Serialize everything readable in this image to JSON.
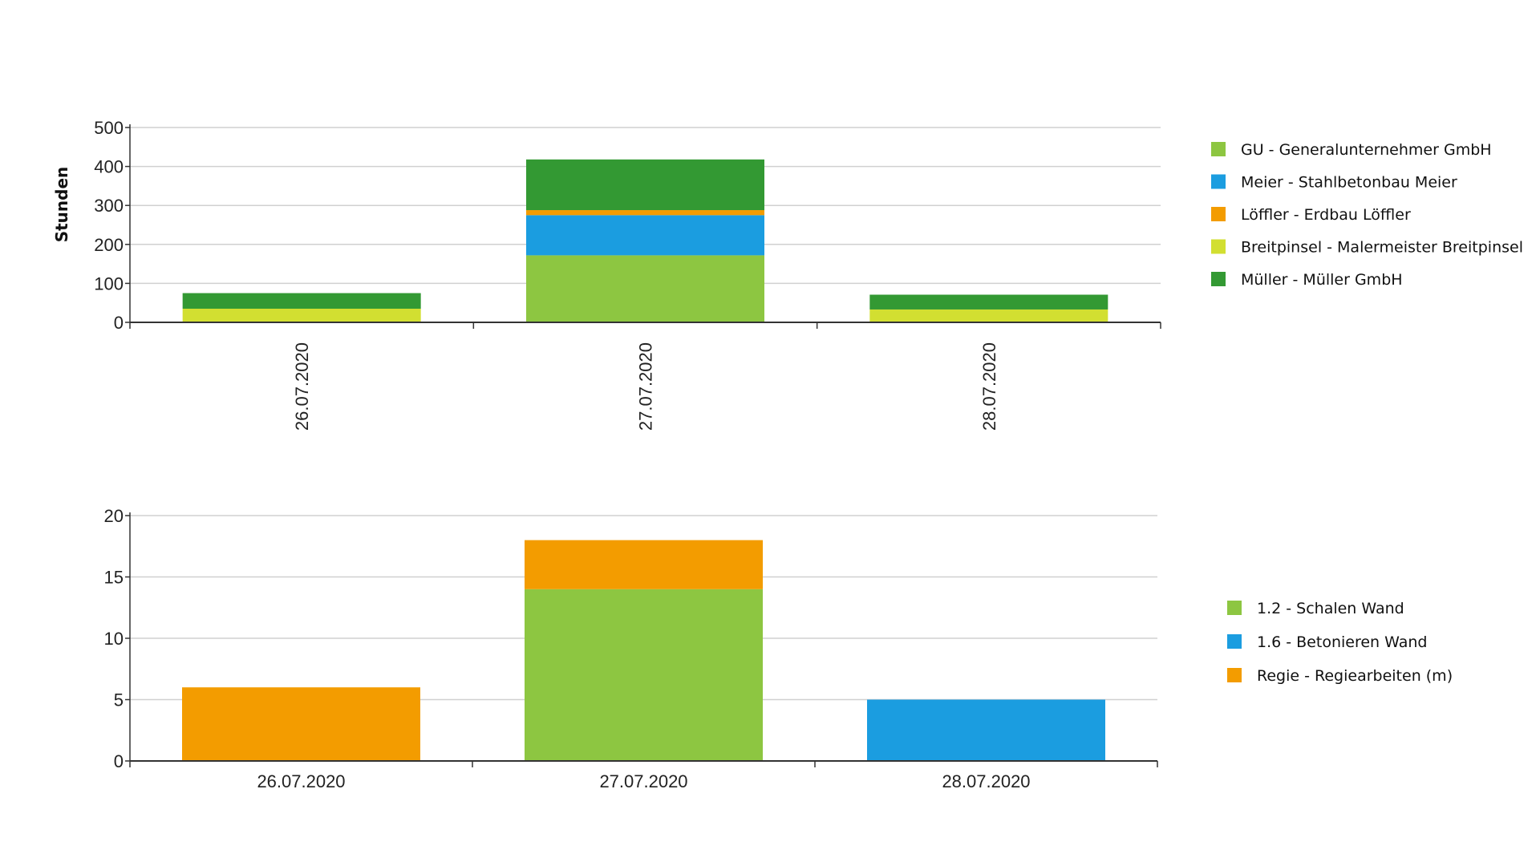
{
  "chart_data": [
    {
      "type": "bar",
      "stacked": true,
      "ylabel": "Stunden",
      "ylim": [
        0,
        500
      ],
      "yticks": [
        0,
        100,
        200,
        300,
        400,
        500
      ],
      "grid": true,
      "categories": [
        "26.07.2020",
        "27.07.2020",
        "28.07.2020"
      ],
      "category_label_orientation": "vertical",
      "legend_position": "right",
      "series": [
        {
          "name": "GU - Generalunternehmer GmbH",
          "color": "#8dc641",
          "values": [
            0,
            172,
            0
          ]
        },
        {
          "name": "Meier - Stahlbetonbau Meier",
          "color": "#1b9de0",
          "values": [
            0,
            103,
            0
          ]
        },
        {
          "name": "Löffler - Erdbau Löffler",
          "color": "#f39c00",
          "values": [
            0,
            13,
            0
          ]
        },
        {
          "name": "Breitpinsel - Malermeister Breitpinsel",
          "color": "#d2df31",
          "values": [
            35,
            0,
            33
          ]
        },
        {
          "name": "Müller - Müller GmbH",
          "color": "#339933",
          "values": [
            40,
            130,
            38
          ]
        }
      ]
    },
    {
      "type": "bar",
      "stacked": true,
      "ylim": [
        0,
        20
      ],
      "yticks": [
        0,
        5,
        10,
        15,
        20
      ],
      "grid": true,
      "categories": [
        "26.07.2020",
        "27.07.2020",
        "28.07.2020"
      ],
      "category_label_orientation": "horizontal",
      "legend_position": "right",
      "series": [
        {
          "name": "1.2 - Schalen Wand",
          "color": "#8dc641",
          "values": [
            0,
            14,
            0
          ]
        },
        {
          "name": "1.6 - Betonieren Wand",
          "color": "#1b9de0",
          "values": [
            0,
            0,
            5
          ]
        },
        {
          "name": "Regie - Regiearbeiten (m)",
          "color": "#f39c00",
          "values": [
            6,
            4,
            0
          ]
        }
      ]
    }
  ]
}
